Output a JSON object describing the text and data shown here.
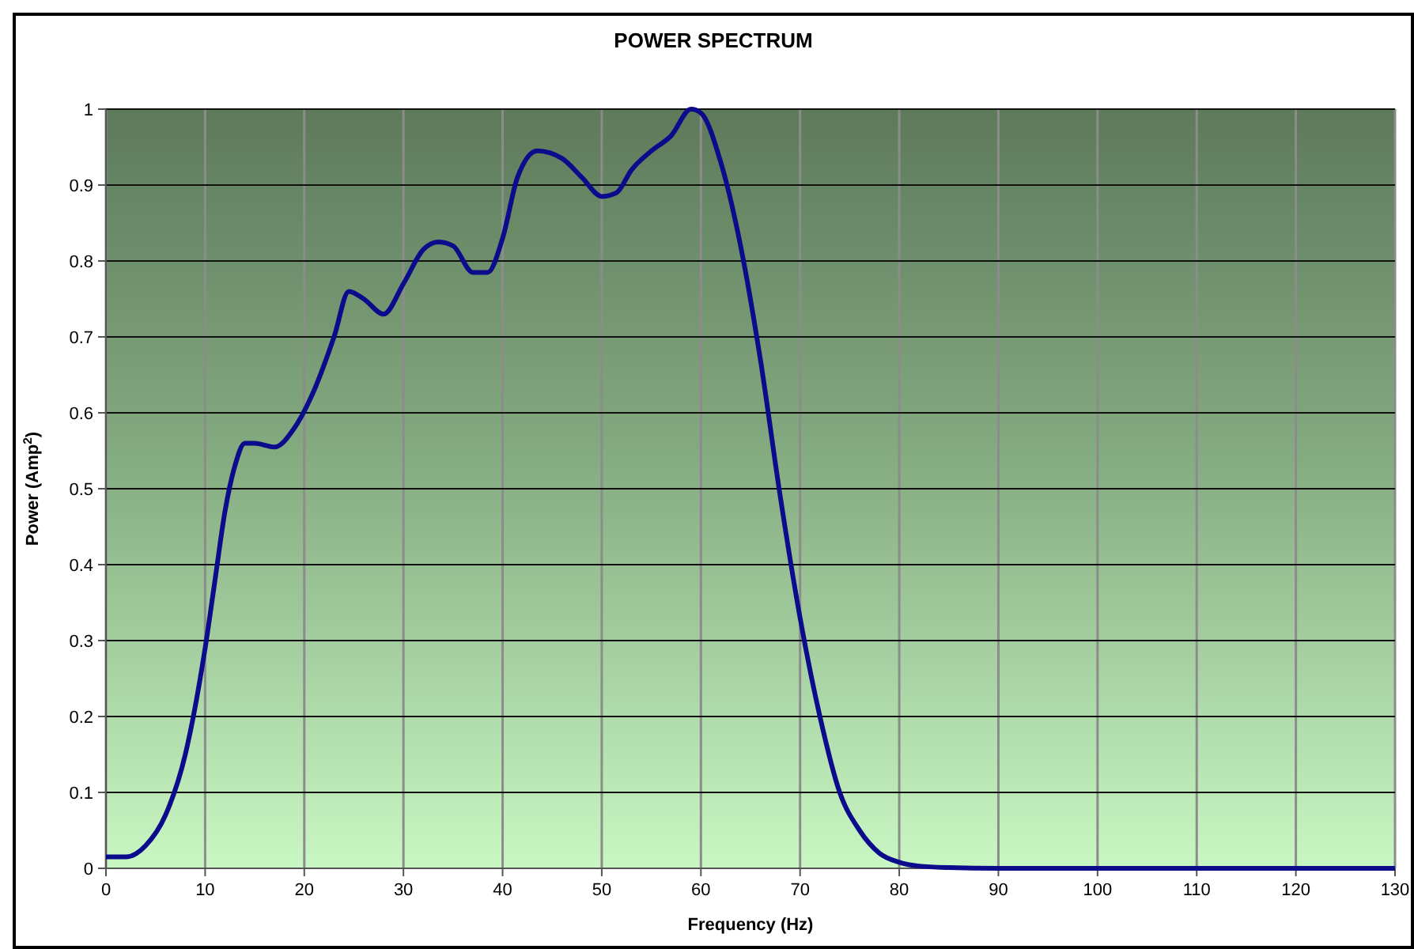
{
  "chart_data": {
    "type": "line",
    "title": "POWER SPECTRUM",
    "xlabel": "Frequency (Hz)",
    "ylabel": "Power (Amp$^{2}$)",
    "xlim": [
      0,
      130
    ],
    "xticks": [
      0,
      10,
      20,
      30,
      40,
      50,
      60,
      70,
      80,
      90,
      100,
      110,
      120,
      130
    ],
    "ylim": [
      0,
      1
    ],
    "yticks": [
      0,
      0.1,
      0.2,
      0.3,
      0.4,
      0.5,
      0.6,
      0.7,
      0.8,
      0.9,
      1
    ],
    "grid": true,
    "marker": "none",
    "line_style": "solid",
    "series": [
      {
        "color": "#0b0b8c",
        "x": [
          0,
          2,
          4,
          6,
          8,
          10,
          11,
          12,
          13,
          14,
          15,
          17,
          19,
          21,
          23,
          24.5,
          26,
          28,
          30,
          32,
          33.5,
          35,
          37,
          38.5,
          40,
          41.5,
          43.5,
          46,
          48,
          50,
          51.5,
          53,
          55,
          57,
          59,
          60,
          62,
          64,
          66,
          68,
          70,
          72,
          74,
          76,
          78,
          80,
          82,
          85,
          90,
          100,
          110,
          120,
          130
        ],
        "values": [
          0.015,
          0.015,
          0.03,
          0.07,
          0.15,
          0.29,
          0.38,
          0.47,
          0.53,
          0.56,
          0.56,
          0.555,
          0.58,
          0.63,
          0.7,
          0.76,
          0.75,
          0.73,
          0.77,
          0.815,
          0.825,
          0.82,
          0.785,
          0.785,
          0.83,
          0.91,
          0.945,
          0.935,
          0.91,
          0.885,
          0.89,
          0.92,
          0.945,
          0.965,
          1.0,
          0.995,
          0.93,
          0.82,
          0.67,
          0.49,
          0.33,
          0.2,
          0.1,
          0.05,
          0.02,
          0.008,
          0.003,
          0.001,
          0,
          0,
          0,
          0,
          0
        ]
      }
    ]
  }
}
